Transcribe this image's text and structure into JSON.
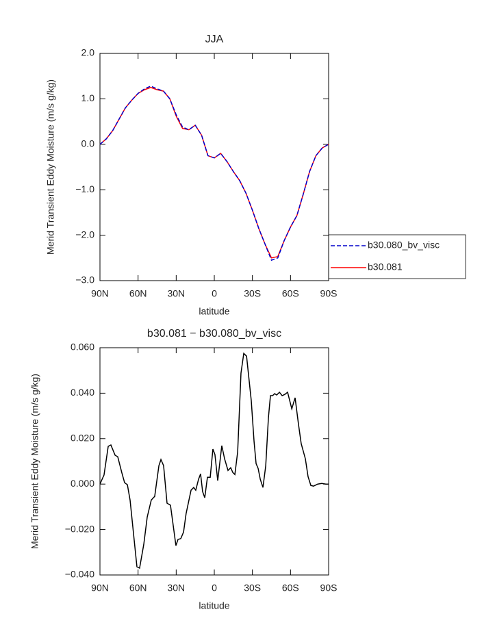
{
  "chart_data": [
    {
      "type": "line",
      "title": "JJA",
      "xlabel": "latitude",
      "ylabel": "Merid Transient Eddy Moisture (m/s g/kg)",
      "x": [
        90,
        85,
        80,
        75,
        70,
        65,
        60,
        55,
        50,
        45,
        40,
        35,
        30,
        25,
        20,
        15,
        10,
        5,
        0,
        -5,
        -10,
        -15,
        -20,
        -25,
        -30,
        -35,
        -40,
        -45,
        -50,
        -55,
        -60,
        -65,
        -70,
        -75,
        -80,
        -85,
        -90
      ],
      "series": [
        {
          "name": "b30.081",
          "color": "#ff0000",
          "linestyle": "solid",
          "values": [
            0,
            0.12,
            0.3,
            0.55,
            0.8,
            0.97,
            1.12,
            1.2,
            1.25,
            1.2,
            1.17,
            1.0,
            0.62,
            0.35,
            0.32,
            0.42,
            0.2,
            -0.25,
            -0.3,
            -0.2,
            -0.38,
            -0.6,
            -0.8,
            -1.08,
            -1.45,
            -1.85,
            -2.2,
            -2.5,
            -2.47,
            -2.12,
            -1.82,
            -1.57,
            -1.1,
            -0.6,
            -0.25,
            -0.08,
            0
          ]
        },
        {
          "name": "b30.080_bv_visc",
          "color": "#0000cc",
          "linestyle": "dashed",
          "values": [
            0,
            0.12,
            0.3,
            0.55,
            0.8,
            0.97,
            1.12,
            1.22,
            1.28,
            1.22,
            1.17,
            1.0,
            0.65,
            0.38,
            0.32,
            0.42,
            0.2,
            -0.25,
            -0.3,
            -0.2,
            -0.38,
            -0.6,
            -0.8,
            -1.08,
            -1.45,
            -1.85,
            -2.2,
            -2.55,
            -2.5,
            -2.12,
            -1.82,
            -1.57,
            -1.1,
            -0.6,
            -0.25,
            -0.08,
            0
          ]
        }
      ],
      "legend": "right",
      "xlim": [
        90,
        -90
      ],
      "xticks": [
        {
          "value": 90,
          "label": "90N"
        },
        {
          "value": 60,
          "label": "60N"
        },
        {
          "value": 30,
          "label": "30N"
        },
        0,
        {
          "value": -30,
          "label": "30S"
        },
        {
          "value": -60,
          "label": "60S"
        },
        {
          "value": -90,
          "label": "90S"
        }
      ],
      "ylim": [
        -3,
        2
      ],
      "yticks": [
        {
          "value": -3,
          "label": "−3.0"
        },
        {
          "value": -2,
          "label": "−2.0"
        },
        {
          "value": -1,
          "label": "−1.0"
        },
        {
          "value": 0,
          "label": "0.0"
        },
        {
          "value": 1,
          "label": "1.0"
        },
        {
          "value": 2,
          "label": "2.0"
        }
      ]
    },
    {
      "type": "line",
      "title": "b30.081 − b30.080_bv_visc",
      "xlabel": "latitude",
      "ylabel": "Merid Transient Eddy Moisture (m/s g/kg)",
      "x": [
        90,
        86.8,
        83.5,
        81.4,
        78.1,
        76,
        72.8,
        70.6,
        68.4,
        66.3,
        63,
        60.9,
        58.8,
        55.5,
        52.8,
        49.6,
        46.9,
        43.6,
        42,
        39.9,
        37.2,
        34.5,
        32.3,
        30.2,
        28.6,
        26.4,
        24.2,
        22.2,
        18.3,
        16.2,
        14.6,
        12.4,
        10.8,
        9.2,
        7.5,
        5.4,
        3.2,
        1.1,
        -0.5,
        -2.7,
        -5.9,
        -8.1,
        -10.8,
        -12.9,
        -14.6,
        -16.2,
        -18.4,
        -21,
        -23.2,
        -25.4,
        -29.1,
        -31.3,
        -32.9,
        -34.5,
        -36.2,
        -38.3,
        -40.5,
        -42.6,
        -44.2,
        -45.9,
        -47.5,
        -49.1,
        -51.3,
        -53.4,
        -55.6,
        -57.7,
        -61,
        -63.6,
        -66.3,
        -68.4,
        -71.7,
        -73.8,
        -76,
        -78.1,
        -81.4,
        -84.6,
        -87.8,
        -90
      ],
      "series": [
        {
          "color": "#000000",
          "values": [
            0,
            0.004,
            0.0166,
            0.0172,
            0.0127,
            0.012,
            0.005,
            0.0006,
            -0.0003,
            -0.007,
            -0.025,
            -0.0364,
            -0.037,
            -0.0265,
            -0.0145,
            -0.007,
            -0.0054,
            0.0081,
            0.0108,
            0.0081,
            -0.0084,
            -0.0093,
            -0.0184,
            -0.0271,
            -0.0244,
            -0.024,
            -0.0211,
            -0.013,
            -0.0027,
            -0.0015,
            -0.0027,
            0.0021,
            0.0045,
            -0.0033,
            -0.006,
            0.003,
            0.003,
            0.0154,
            0.013,
            0.0015,
            0.0169,
            0.0111,
            0.006,
            0.0072,
            0.0051,
            0.0042,
            0.0142,
            0.0488,
            0.0575,
            0.0563,
            0.0367,
            0.0187,
            0.009,
            0.0069,
            0.0021,
            -0.0015,
            0.0081,
            0.0292,
            0.0389,
            0.0389,
            0.0398,
            0.0392,
            0.0404,
            0.0389,
            0.0395,
            0.0404,
            0.0331,
            0.038,
            0.0262,
            0.0178,
            0.0111,
            0.0033,
            -0.0006,
            -0.0009,
            0,
            0.0003,
            0,
            0
          ]
        }
      ],
      "xlim": [
        90,
        -90
      ],
      "xticks": [
        {
          "value": 90,
          "label": "90N"
        },
        {
          "value": 60,
          "label": "60N"
        },
        {
          "value": 30,
          "label": "30N"
        },
        0,
        {
          "value": -30,
          "label": "30S"
        },
        {
          "value": -60,
          "label": "60S"
        },
        {
          "value": -90,
          "label": "90S"
        }
      ],
      "ylim": [
        -0.04,
        0.06
      ],
      "yticks": [
        {
          "value": -0.04,
          "label": "−0.040"
        },
        {
          "value": -0.02,
          "label": "−0.020"
        },
        {
          "value": 0,
          "label": "0.000"
        },
        {
          "value": 0.02,
          "label": "0.020"
        },
        {
          "value": 0.04,
          "label": "0.040"
        },
        {
          "value": 0.06,
          "label": "0.060"
        }
      ]
    }
  ]
}
